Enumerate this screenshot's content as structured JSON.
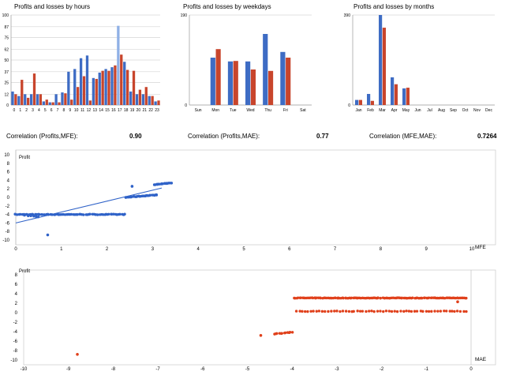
{
  "titles": {
    "hours": "Profits and losses by hours",
    "weekdays": "Profits and losses by weekdays",
    "months": "Profits and losses by months"
  },
  "correlations": [
    {
      "label": "Correlation (Profits,MFE):",
      "value": "0.90"
    },
    {
      "label": "Correlation (Profits,MAE):",
      "value": "0.77"
    },
    {
      "label": "Correlation (MFE,MAE):",
      "value": "0.7264"
    }
  ],
  "colors": {
    "profit": "#3e6cc4",
    "loss": "#c8452c",
    "profit_light": "#8fb0e6",
    "scatter_blue": "#2f62c8",
    "scatter_red": "#e0401b"
  },
  "chart_data": [
    {
      "type": "bar",
      "name": "hours",
      "yticks": [
        "0",
        "12",
        "25",
        "37",
        "50",
        "62",
        "75",
        "87",
        "100"
      ],
      "categories": [
        "0",
        "1",
        "2",
        "3",
        "4",
        "5",
        "6",
        "7",
        "8",
        "9",
        "10",
        "11",
        "12",
        "13",
        "14",
        "15",
        "16",
        "17",
        "18",
        "19",
        "20",
        "21",
        "22",
        "23"
      ],
      "series": [
        {
          "values": [
            15,
            10,
            12,
            12,
            12,
            4,
            3,
            12,
            14,
            37,
            40,
            52,
            55,
            30,
            36,
            40,
            42,
            88,
            48,
            15,
            12,
            12,
            10,
            4
          ]
        },
        {
          "values": [
            12,
            28,
            8,
            35,
            12,
            6,
            3,
            3,
            13,
            6,
            20,
            32,
            5,
            29,
            38,
            38,
            44,
            56,
            39,
            38,
            17,
            20,
            10,
            5
          ]
        }
      ],
      "ylim": [
        0,
        100
      ]
    },
    {
      "type": "bar",
      "name": "weekdays",
      "yticks": [
        "0",
        "190"
      ],
      "categories": [
        "Sun",
        "Mon",
        "Tue",
        "Wed",
        "Thu",
        "Fri",
        "Sat"
      ],
      "series": [
        {
          "values": [
            0,
            100,
            92,
            92,
            150,
            112,
            0
          ]
        },
        {
          "values": [
            0,
            118,
            93,
            75,
            72,
            100,
            0
          ]
        }
      ],
      "ylim": [
        0,
        190
      ]
    },
    {
      "type": "bar",
      "name": "months",
      "yticks": [
        "0",
        "390"
      ],
      "categories": [
        "Jan",
        "Feb",
        "Mar",
        "Apr",
        "May",
        "Jun",
        "Jul",
        "Aug",
        "Sep",
        "Oct",
        "Nov",
        "Dec"
      ],
      "series": [
        {
          "values": [
            22,
            48,
            390,
            120,
            72,
            0,
            0,
            0,
            0,
            0,
            0,
            0
          ]
        },
        {
          "values": [
            22,
            18,
            335,
            90,
            75,
            0,
            0,
            0,
            0,
            0,
            0,
            0
          ]
        }
      ],
      "ylim": [
        0,
        390
      ]
    },
    {
      "type": "scatter",
      "name": "mfe",
      "ylabel": "Profit",
      "xlabel": "MFE",
      "xlim": [
        0,
        10
      ],
      "ylim": [
        -10,
        10
      ],
      "xticks": [
        0,
        1,
        2,
        3,
        4,
        5,
        6,
        7,
        8,
        9,
        10
      ],
      "yticks": [
        10,
        8,
        6,
        4,
        2,
        0,
        -2,
        -4,
        -6,
        -8,
        -10
      ],
      "trend": [
        [
          0,
          -6
        ],
        [
          3.2,
          2.2
        ]
      ],
      "clusters": [
        {
          "x0": 0.0,
          "x1": 2.4,
          "y0": -4.0,
          "y1": -4.0,
          "n": 70,
          "jitter": 0.15
        },
        {
          "x0": 0.2,
          "x1": 0.5,
          "y0": -4.2,
          "y1": -4.6,
          "n": 6,
          "jitter": 0.1
        },
        {
          "x0": 2.4,
          "x1": 3.1,
          "y0": 0.0,
          "y1": 0.6,
          "n": 30,
          "jitter": 0.12
        },
        {
          "x0": 3.05,
          "x1": 3.4,
          "y0": 3.0,
          "y1": 3.4,
          "n": 18,
          "jitter": 0.1
        }
      ],
      "points": [
        [
          0.7,
          -8.8
        ],
        [
          2.55,
          2.6
        ]
      ]
    },
    {
      "type": "scatter",
      "name": "mae",
      "ylabel": "Profit",
      "xlabel": "MAE",
      "xlim": [
        -10,
        0
      ],
      "ylim": [
        -10,
        8
      ],
      "xticks": [
        -10,
        -9,
        -8,
        -7,
        -6,
        -5,
        -4,
        -3,
        -2,
        -1,
        0
      ],
      "yticks": [
        8,
        6,
        4,
        2,
        0,
        -2,
        -4,
        -6,
        -8,
        -10
      ],
      "clusters": [
        {
          "x0": -3.95,
          "x1": -0.1,
          "y0": 3.1,
          "y1": 3.1,
          "n": 130,
          "jitter": 0.1
        },
        {
          "x0": -3.9,
          "x1": -0.1,
          "y0": 0.3,
          "y1": 0.3,
          "n": 60,
          "jitter": 0.15
        },
        {
          "x0": -4.4,
          "x1": -4.0,
          "y0": -4.5,
          "y1": -4.1,
          "n": 12,
          "jitter": 0.1
        }
      ],
      "points": [
        [
          -8.8,
          -8.8
        ],
        [
          -4.7,
          -4.8
        ],
        [
          -0.3,
          2.3
        ]
      ]
    }
  ]
}
